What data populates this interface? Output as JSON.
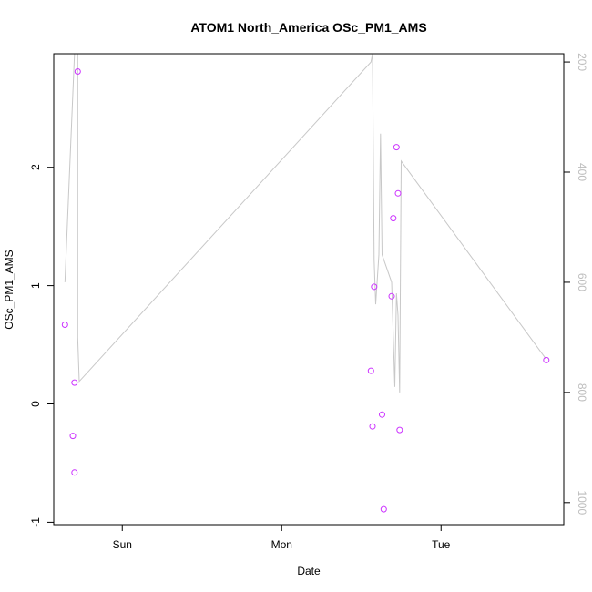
{
  "chart_data": {
    "type": "scatter",
    "title": "ATOM1 North_America OSc_PM1_AMS",
    "xlabel": "Date",
    "ylabel": "OSc_PM1_AMS",
    "x_ticks": [
      {
        "label": "Sun",
        "value": 1.0
      },
      {
        "label": "Mon",
        "value": 2.0
      },
      {
        "label": "Tue",
        "value": 3.0
      }
    ],
    "xlim": [
      0.57,
      3.77
    ],
    "ylim": [
      -1.02,
      2.96
    ],
    "y_ticks": [
      -1,
      0,
      1,
      2
    ],
    "y2lim": [
      1040,
      185
    ],
    "y2_ticks": [
      200,
      400,
      600,
      800,
      1000
    ],
    "points_color": "#cc33ff",
    "line_color": "#c8c8c8",
    "points": [
      {
        "x": 0.64,
        "y": 0.67
      },
      {
        "x": 0.72,
        "y": 2.81
      },
      {
        "x": 0.7,
        "y": 0.18
      },
      {
        "x": 0.69,
        "y": -0.27
      },
      {
        "x": 0.7,
        "y": -0.58
      },
      {
        "x": 2.56,
        "y": 0.28
      },
      {
        "x": 2.57,
        "y": -0.19
      },
      {
        "x": 2.58,
        "y": 0.99
      },
      {
        "x": 2.63,
        "y": -0.09
      },
      {
        "x": 2.64,
        "y": -0.89
      },
      {
        "x": 2.69,
        "y": 0.91
      },
      {
        "x": 2.7,
        "y": 1.57
      },
      {
        "x": 2.72,
        "y": 2.17
      },
      {
        "x": 2.73,
        "y": 1.78
      },
      {
        "x": 2.74,
        "y": -0.22
      },
      {
        "x": 3.66,
        "y": 0.37
      }
    ],
    "line_series": [
      {
        "x": 0.64,
        "y": 600
      },
      {
        "x": 0.7,
        "y": 185
      },
      {
        "x": 0.72,
        "y": 185
      },
      {
        "x": 0.72,
        "y": 700
      },
      {
        "x": 0.73,
        "y": 780
      },
      {
        "x": 2.56,
        "y": 200
      },
      {
        "x": 2.57,
        "y": 185
      },
      {
        "x": 2.58,
        "y": 560
      },
      {
        "x": 2.59,
        "y": 640
      },
      {
        "x": 2.61,
        "y": 550
      },
      {
        "x": 2.62,
        "y": 330
      },
      {
        "x": 2.63,
        "y": 550
      },
      {
        "x": 2.69,
        "y": 600
      },
      {
        "x": 2.71,
        "y": 790
      },
      {
        "x": 2.72,
        "y": 620
      },
      {
        "x": 2.73,
        "y": 660
      },
      {
        "x": 2.74,
        "y": 800
      },
      {
        "x": 2.75,
        "y": 380
      },
      {
        "x": 3.66,
        "y": 740
      }
    ]
  }
}
